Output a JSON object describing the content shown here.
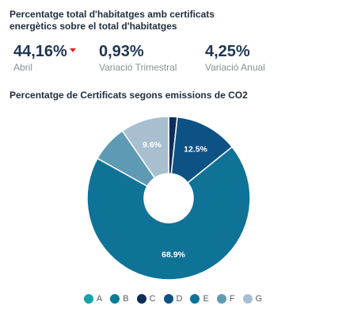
{
  "header": {
    "title": "Percentatge total d'habitatges amb certificats energètics sobre el total d'habitatges"
  },
  "kpis": [
    {
      "value": "44,16%",
      "label": "Abril",
      "trend": "down"
    },
    {
      "value": "0,93%",
      "label": "Variació Trimestral"
    },
    {
      "value": "4,25%",
      "label": "Variació Anual"
    }
  ],
  "colors": {
    "A": "#16a2a6",
    "B": "#0d7a96",
    "C": "#0d2f5a",
    "D": "#0d5284",
    "E": "#0e7397",
    "F": "#5f9ab5",
    "G": "#a7bfcf",
    "trend_down": "#d62828"
  },
  "chart_data": {
    "type": "pie",
    "title": "Percentatge de Certificats segons emissions de CO2",
    "donut": true,
    "legend_position": "bottom",
    "categories": [
      "A",
      "B",
      "C",
      "D",
      "E",
      "F",
      "G"
    ],
    "values": [
      0,
      0,
      1.7,
      12.5,
      68.9,
      7.3,
      9.6
    ],
    "data_labels": [
      "",
      "",
      "",
      "12.5%",
      "68.9%",
      "",
      "9.6%"
    ]
  }
}
